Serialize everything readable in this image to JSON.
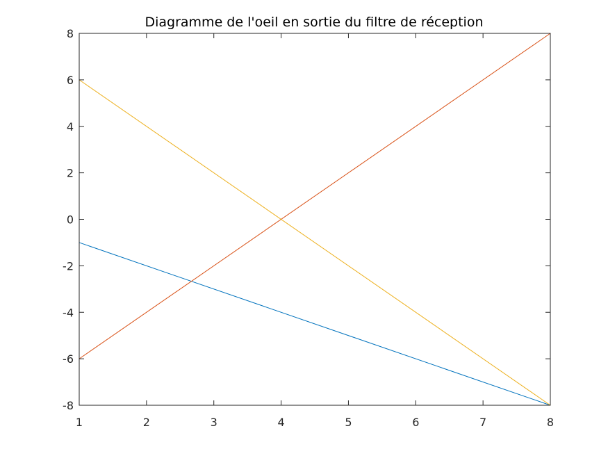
{
  "chart_data": {
    "type": "line",
    "title": "Diagramme de l'oeil en sortie du filtre de réception",
    "xlabel": "",
    "ylabel": "",
    "xlim": [
      1,
      8
    ],
    "ylim": [
      -8,
      8
    ],
    "xticks": [
      1,
      2,
      3,
      4,
      5,
      6,
      7,
      8
    ],
    "yticks": [
      -8,
      -6,
      -4,
      -2,
      0,
      2,
      4,
      6,
      8
    ],
    "grid": false,
    "legend": "none",
    "box": true,
    "axis_color": "#262626",
    "series": [
      {
        "color": "#0072BD",
        "x": [
          1,
          8
        ],
        "y": [
          -1,
          -8
        ]
      },
      {
        "color": "#D95319",
        "x": [
          1,
          8
        ],
        "y": [
          -6,
          8
        ]
      },
      {
        "color": "#EDB120",
        "x": [
          1,
          8
        ],
        "y": [
          6,
          -8
        ]
      },
      {
        "color": "#77AC30",
        "x": [
          1,
          8
        ],
        "y": [
          -8,
          -8
        ]
      },
      {
        "color": "#4DBEEE",
        "x": [
          1,
          8
        ],
        "y": [
          -8,
          -8
        ]
      },
      {
        "color": "#A2142F",
        "x": [
          1,
          8
        ],
        "y": [
          8,
          8
        ]
      }
    ]
  }
}
